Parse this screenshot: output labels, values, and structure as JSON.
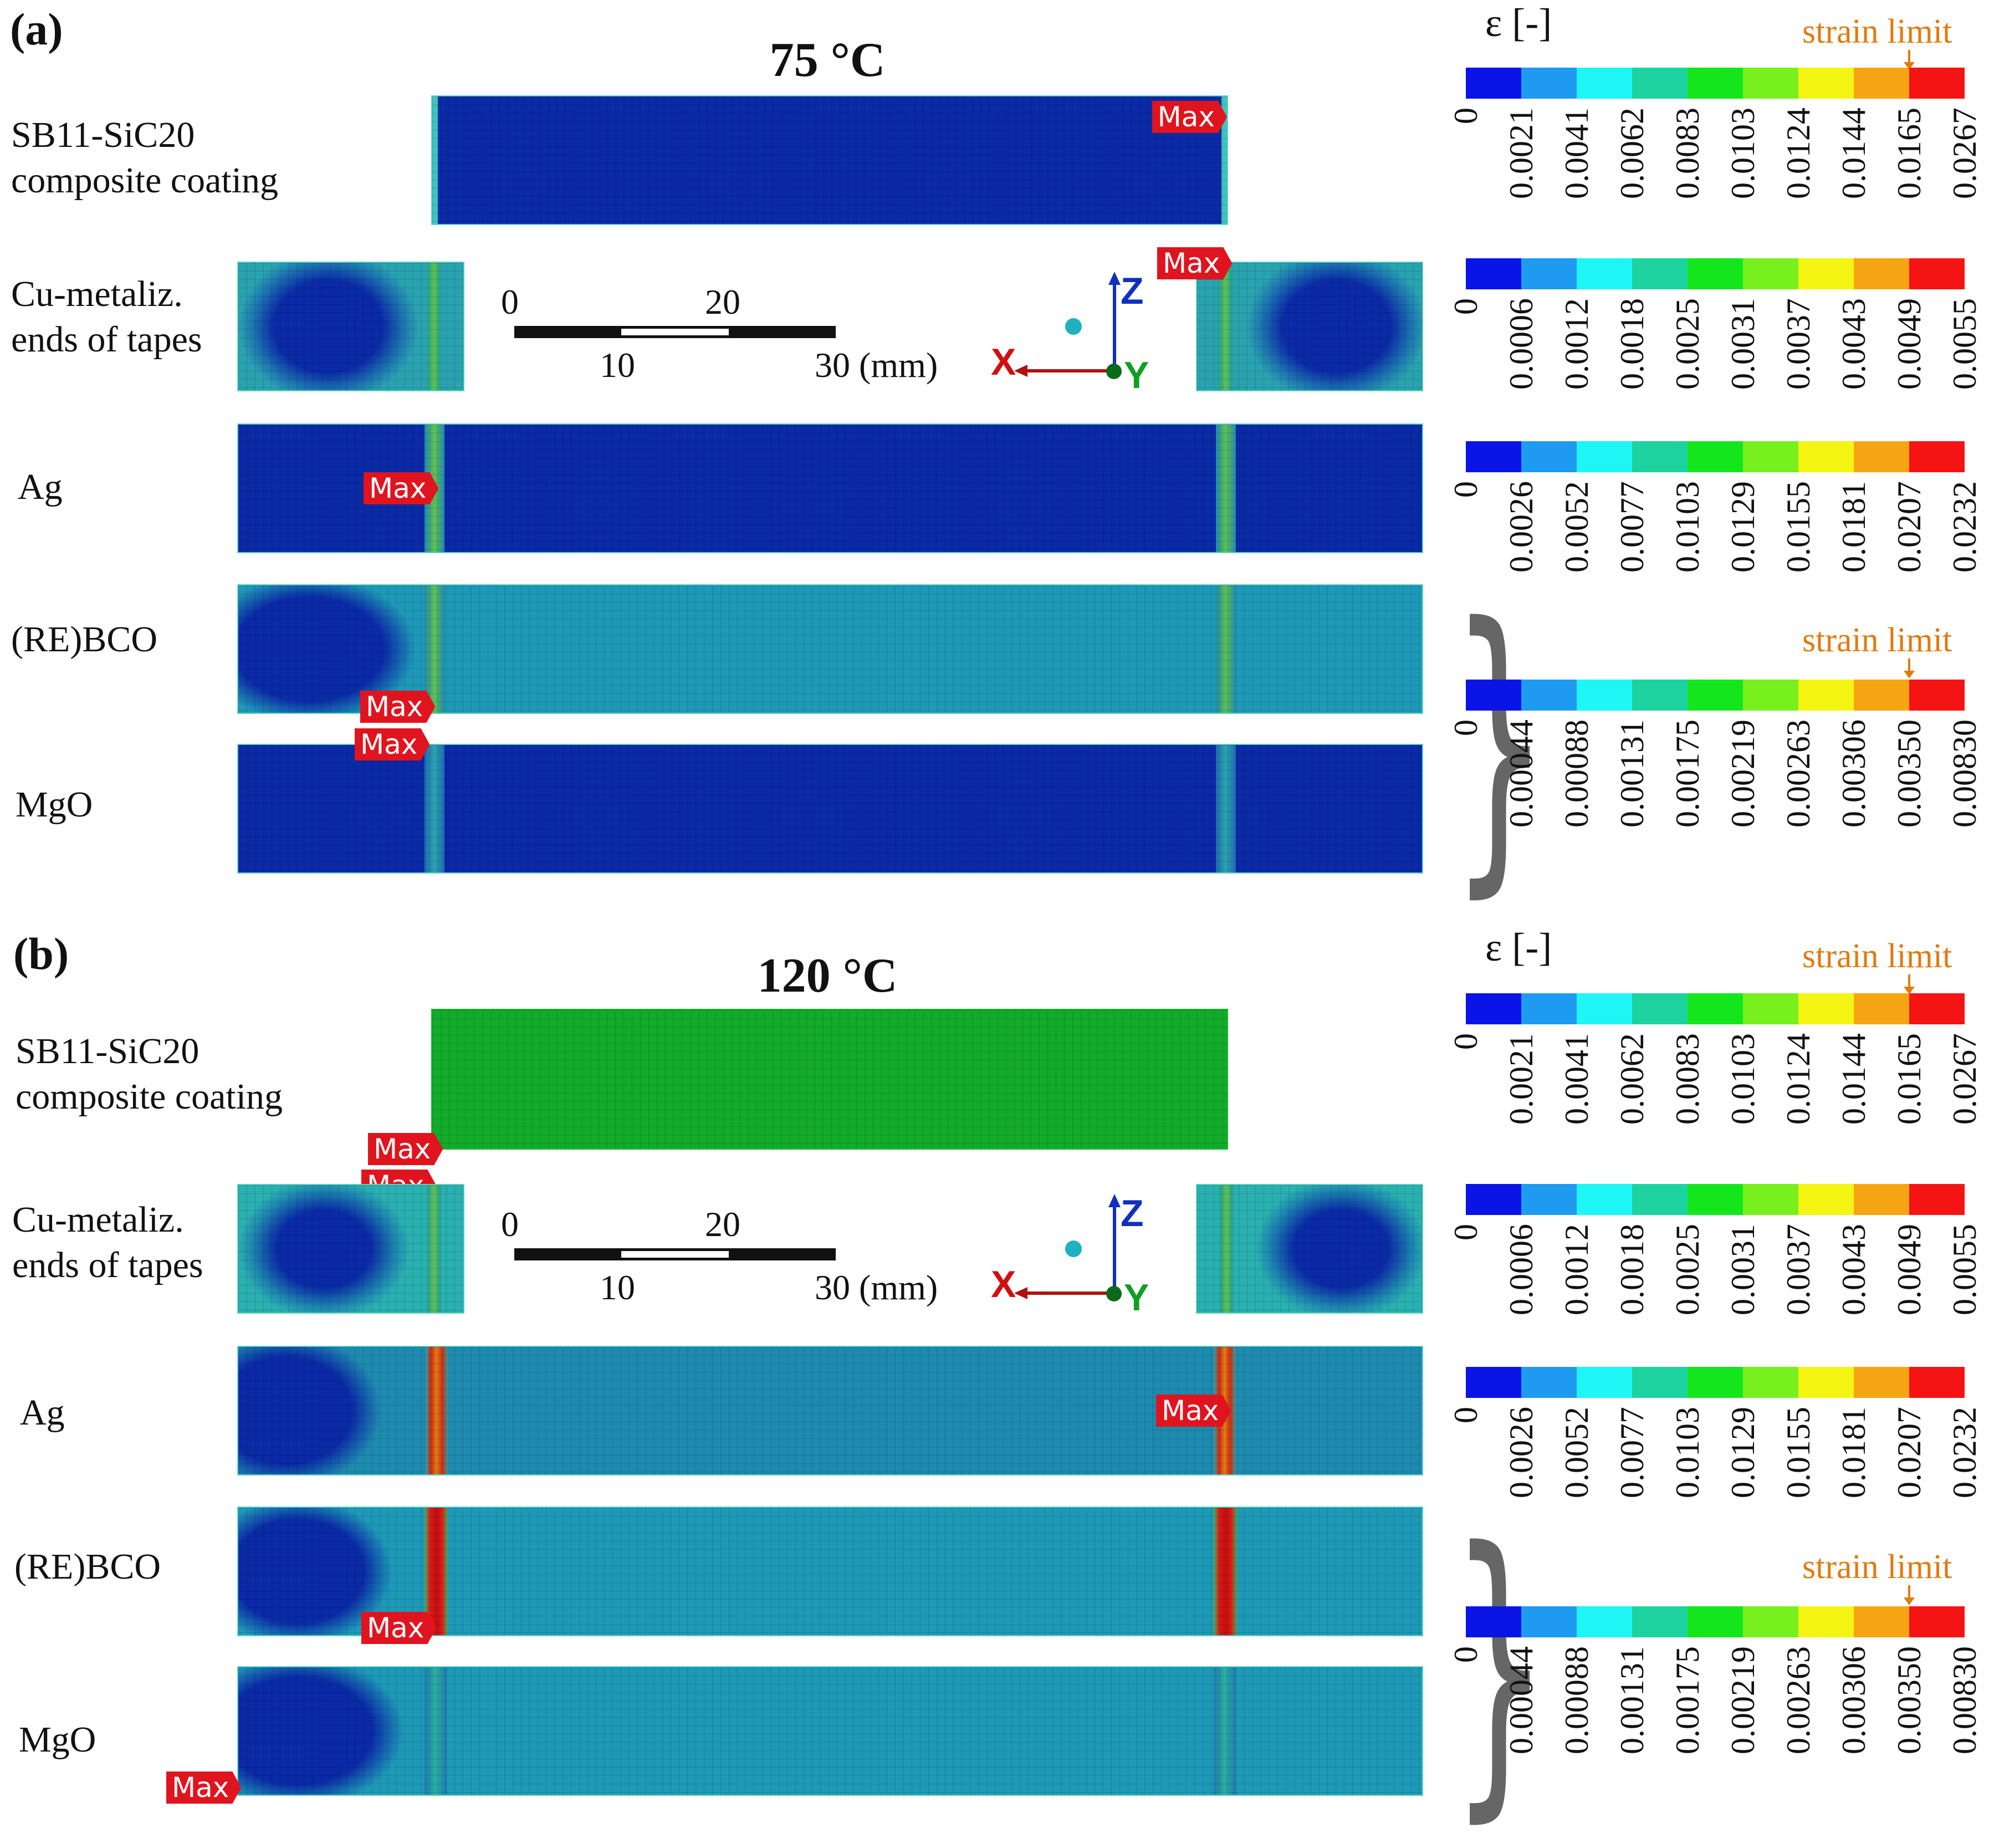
{
  "panels": [
    {
      "label": "(a)",
      "title": "75 °C"
    },
    {
      "label": "(b)",
      "title": "120 °C"
    }
  ],
  "layers": {
    "coating": [
      "SB11-SiC20",
      "composite coating"
    ],
    "cu": [
      "Cu-metaliz.",
      "ends of tapes"
    ],
    "ag": "Ag",
    "rebco": "(RE)BCO",
    "mgo": "MgO"
  },
  "max_label": "Max",
  "scale_bar": {
    "ticks_top": [
      "0",
      "20"
    ],
    "ticks_bottom": [
      "10",
      "30 (mm)"
    ]
  },
  "axes": {
    "x": "X",
    "y": "Y",
    "z": "Z"
  },
  "legend": {
    "epsilon_label": "ε [-]",
    "strain_limit": "strain limit",
    "colors": [
      "#0a14e6",
      "#1e9bf0",
      "#1ef5f5",
      "#1ed2a0",
      "#14e61e",
      "#78f01e",
      "#f5f514",
      "#f5a514",
      "#f51414"
    ],
    "scales": {
      "coating": [
        "0",
        "0.0021",
        "0.0041",
        "0.0062",
        "0.0083",
        "0.0103",
        "0.0124",
        "0.0144",
        "0.0165",
        "0.0267"
      ],
      "cu": [
        "0",
        "0.0006",
        "0.0012",
        "0.0018",
        "0.0025",
        "0.0031",
        "0.0037",
        "0.0043",
        "0.0049",
        "0.0055"
      ],
      "ag": [
        "0",
        "0.0026",
        "0.0052",
        "0.0077",
        "0.0103",
        "0.0129",
        "0.0155",
        "0.0181",
        "0.0207",
        "0.0232"
      ],
      "rebco_mgo": [
        "0",
        "0.00044",
        "0.00088",
        "0.00131",
        "0.00175",
        "0.00219",
        "0.00263",
        "0.00306",
        "0.00350",
        "0.00830"
      ]
    }
  }
}
